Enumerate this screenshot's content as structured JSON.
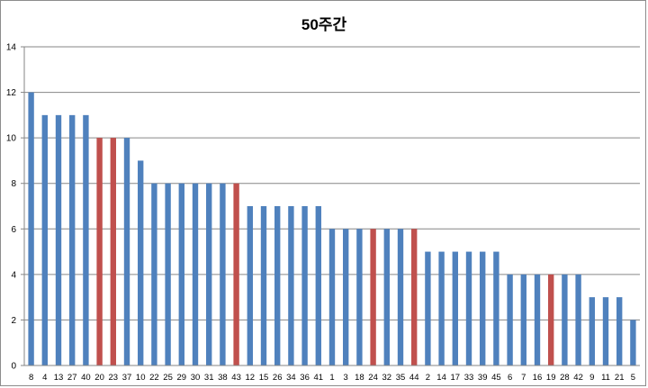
{
  "chart_data": {
    "type": "bar",
    "title": "50주간",
    "xlabel": "",
    "ylabel": "",
    "ylim": [
      0,
      14
    ],
    "yticks": [
      0,
      2,
      4,
      6,
      8,
      10,
      12,
      14
    ],
    "grid": true,
    "legend": "none",
    "colors": {
      "primary": "#4f81bd",
      "highlight": "#c0504d",
      "grid": "#868686"
    },
    "categories": [
      "8",
      "4",
      "13",
      "27",
      "40",
      "20",
      "23",
      "37",
      "10",
      "22",
      "25",
      "29",
      "30",
      "31",
      "38",
      "43",
      "12",
      "15",
      "26",
      "34",
      "36",
      "41",
      "1",
      "3",
      "18",
      "24",
      "32",
      "35",
      "44",
      "2",
      "14",
      "17",
      "33",
      "39",
      "45",
      "6",
      "7",
      "16",
      "19",
      "28",
      "42",
      "9",
      "11",
      "21",
      "5"
    ],
    "values": [
      12,
      11,
      11,
      11,
      11,
      10,
      10,
      10,
      9,
      8,
      8,
      8,
      8,
      8,
      8,
      8,
      7,
      7,
      7,
      7,
      7,
      7,
      6,
      6,
      6,
      6,
      6,
      6,
      6,
      5,
      5,
      5,
      5,
      5,
      5,
      4,
      4,
      4,
      4,
      4,
      4,
      3,
      3,
      3,
      2
    ],
    "highlighted": [
      "20",
      "23",
      "43",
      "24",
      "44",
      "19"
    ]
  }
}
